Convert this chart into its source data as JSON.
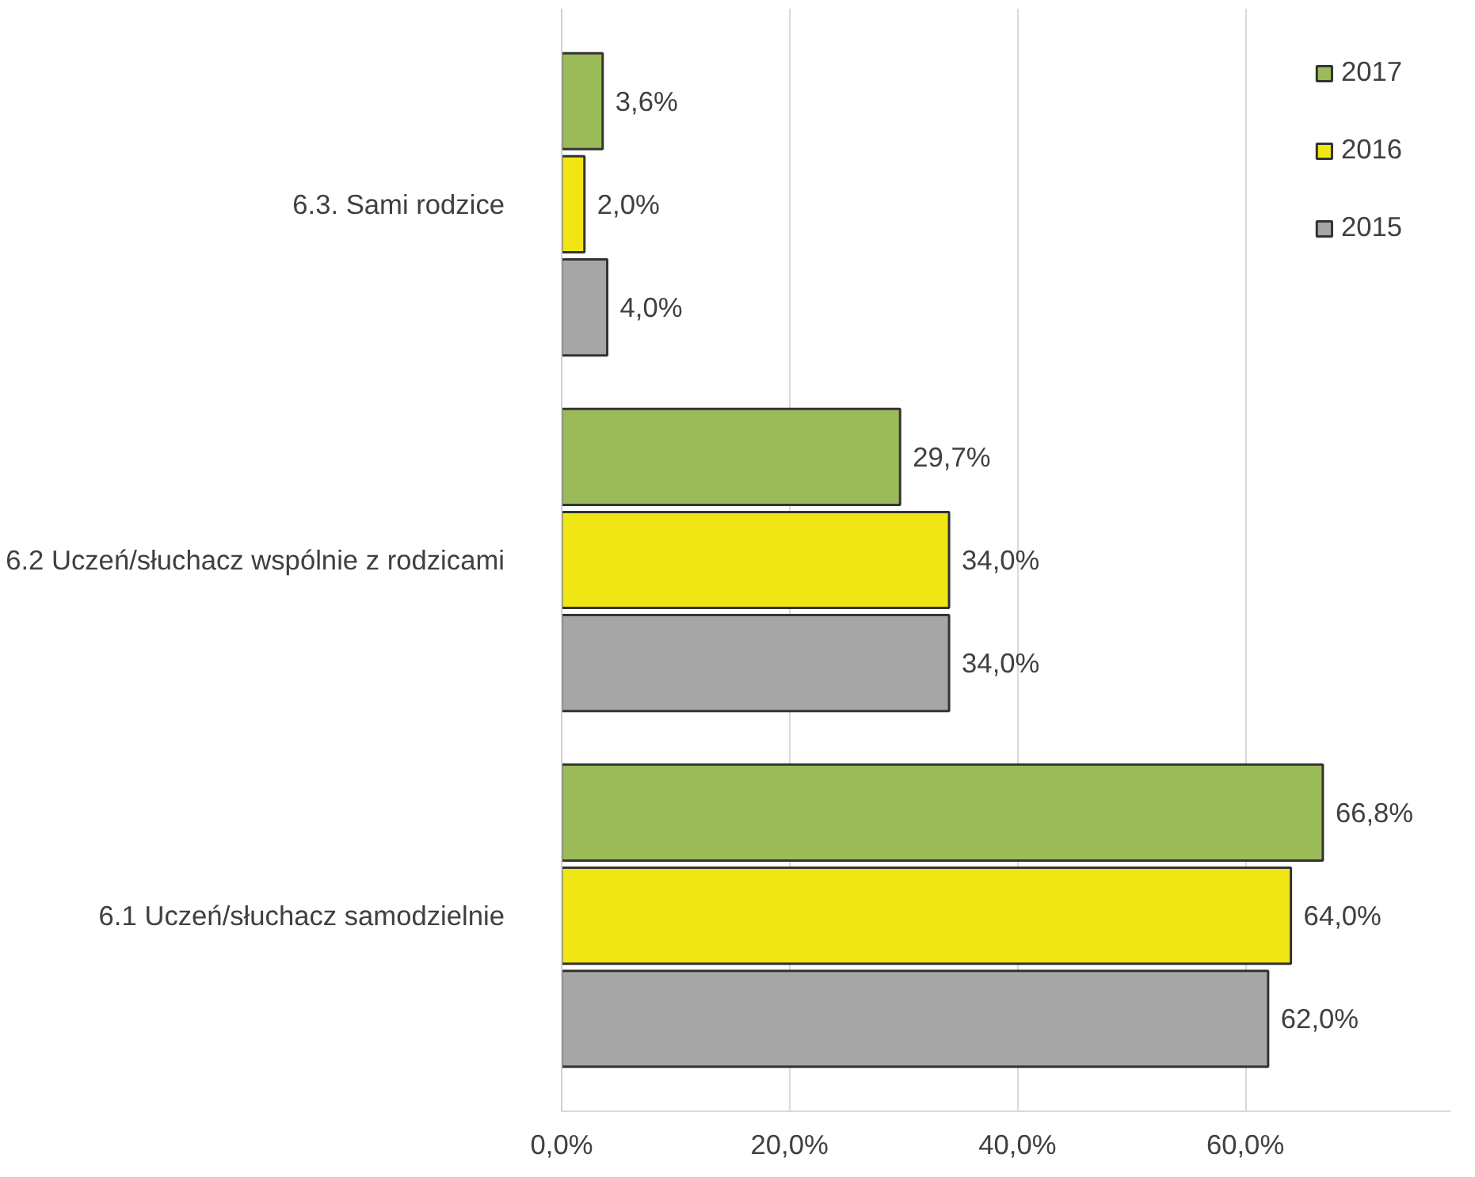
{
  "chart_data": {
    "type": "bar",
    "orientation": "horizontal",
    "categories": [
      "6.3. Sami rodzice",
      "6.2 Uczeń/słuchacz wspólnie z rodzicami",
      "6.1 Uczeń/słuchacz samodzielnie"
    ],
    "series": [
      {
        "name": "2017",
        "color": "#9bbb59",
        "values": [
          3.6,
          29.7,
          66.8
        ],
        "value_labels": [
          "3,6%",
          "29,7%",
          "66,8%"
        ]
      },
      {
        "name": "2016",
        "color": "#f0e614",
        "values": [
          2.0,
          34.0,
          64.0
        ],
        "value_labels": [
          "2,0%",
          "34,0%",
          "64,0%"
        ]
      },
      {
        "name": "2015",
        "color": "#a6a6a6",
        "values": [
          4.0,
          34.0,
          62.0
        ],
        "value_labels": [
          "4,0%",
          "34,0%",
          "62,0%"
        ]
      }
    ],
    "xlim": [
      0,
      78
    ],
    "xticks": [
      {
        "value": 0,
        "label": "0,0%"
      },
      {
        "value": 20,
        "label": "20,0%"
      },
      {
        "value": 40,
        "label": "40,0%"
      },
      {
        "value": 60,
        "label": "60,0%"
      }
    ],
    "grid": "x",
    "legend": "top right"
  }
}
